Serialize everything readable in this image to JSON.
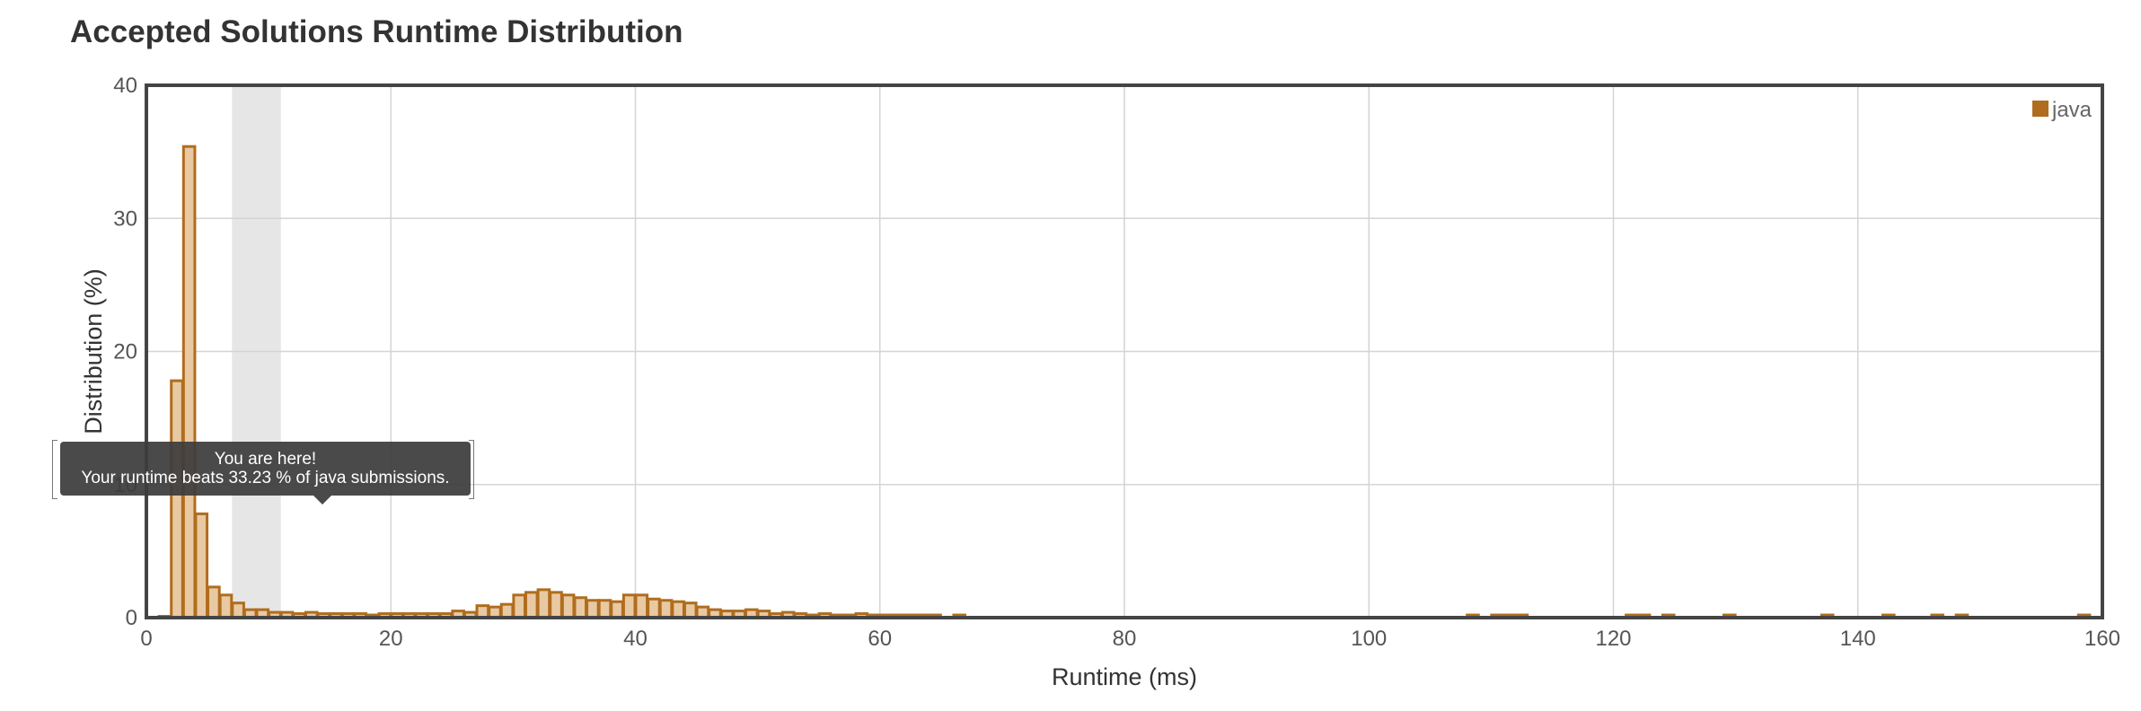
{
  "title": "Accepted Solutions Runtime Distribution",
  "colors": {
    "bar_fill": "#e8c9a3",
    "bar_stroke": "#b06d1d",
    "legend_swatch": "#b06d1d",
    "highlight_band": "#e6e6e6",
    "grid": "#d4d4d4",
    "frame": "#444444"
  },
  "tooltip": {
    "line1": "You are here!",
    "line2": "Your runtime beats 33.23 % of java submissions."
  },
  "chart_data": {
    "type": "bar",
    "xlabel": "Runtime (ms)",
    "ylabel": "Distribution (%)",
    "xlim": [
      0,
      160
    ],
    "ylim": [
      0,
      40
    ],
    "x_ticks": [
      0,
      20,
      40,
      60,
      80,
      100,
      120,
      140,
      160
    ],
    "y_ticks": [
      0,
      10,
      20,
      30,
      40
    ],
    "bin_width": 1,
    "grid": true,
    "legend_position": "top-right",
    "highlight_range": [
      7,
      11
    ],
    "series": [
      {
        "name": "java",
        "x": [
          1,
          2,
          3,
          4,
          5,
          6,
          7,
          8,
          9,
          10,
          11,
          12,
          13,
          14,
          15,
          16,
          17,
          18,
          19,
          20,
          21,
          22,
          23,
          24,
          25,
          26,
          27,
          28,
          29,
          30,
          31,
          32,
          33,
          34,
          35,
          36,
          37,
          38,
          39,
          40,
          41,
          42,
          43,
          44,
          45,
          46,
          47,
          48,
          49,
          50,
          51,
          52,
          53,
          54,
          55,
          56,
          57,
          58,
          59,
          60,
          61,
          62,
          63,
          64,
          66,
          108,
          110,
          111,
          112,
          121,
          122,
          124,
          129,
          137,
          142,
          146,
          148,
          158
        ],
        "values": [
          0.1,
          17.8,
          35.4,
          7.8,
          2.3,
          1.7,
          1.1,
          0.6,
          0.6,
          0.4,
          0.4,
          0.3,
          0.4,
          0.3,
          0.3,
          0.3,
          0.3,
          0.2,
          0.3,
          0.3,
          0.3,
          0.3,
          0.3,
          0.3,
          0.5,
          0.4,
          0.9,
          0.8,
          1.0,
          1.7,
          1.9,
          2.1,
          1.9,
          1.7,
          1.5,
          1.3,
          1.3,
          1.2,
          1.7,
          1.7,
          1.4,
          1.3,
          1.2,
          1.1,
          0.8,
          0.6,
          0.5,
          0.5,
          0.6,
          0.5,
          0.3,
          0.4,
          0.3,
          0.2,
          0.3,
          0.2,
          0.2,
          0.3,
          0.2,
          0.2,
          0.2,
          0.2,
          0.2,
          0.2,
          0.2,
          0.2,
          0.2,
          0.2,
          0.2,
          0.2,
          0.2,
          0.2,
          0.2,
          0.2,
          0.2,
          0.2,
          0.2,
          0.2
        ]
      }
    ]
  }
}
